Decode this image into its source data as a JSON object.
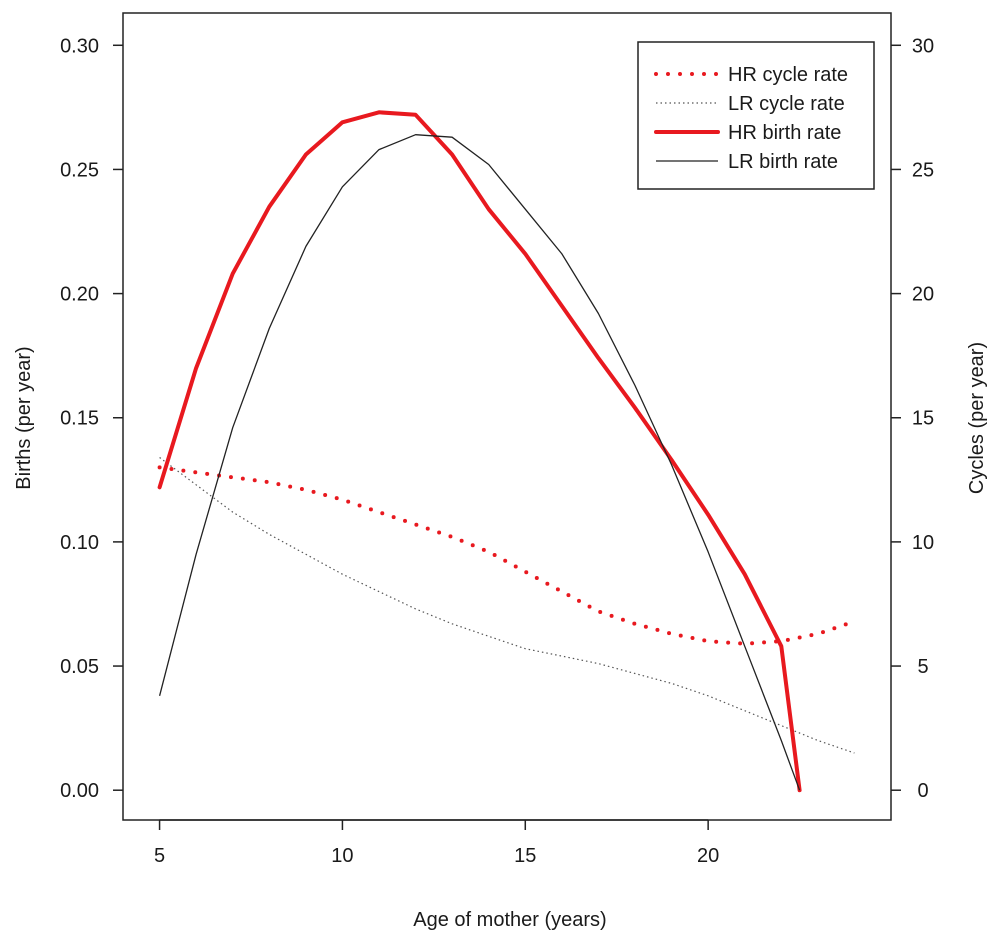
{
  "chart_data": {
    "type": "line",
    "xlabel": "Age of mother (years)",
    "ylabel_left": "Births (per year)",
    "ylabel_right": "Cycles (per year)",
    "xlim": [
      4,
      25
    ],
    "ylim_left": [
      -0.012,
      0.313
    ],
    "ylim_right": [
      -1.2,
      31.3
    ],
    "x_ticks": [
      5,
      10,
      15,
      20
    ],
    "y_left_ticks": [
      0.0,
      0.05,
      0.1,
      0.15,
      0.2,
      0.25,
      0.3
    ],
    "y_left_tick_labels": [
      "0.00",
      "0.05",
      "0.10",
      "0.15",
      "0.20",
      "0.25",
      "0.30"
    ],
    "y_right_ticks": [
      0,
      5,
      10,
      15,
      20,
      25,
      30
    ],
    "y_right_tick_labels": [
      "0",
      "5",
      "10",
      "15",
      "20",
      "25",
      "30"
    ],
    "grid": false,
    "legend_position": "top-right",
    "series": [
      {
        "name": "HR cycle rate",
        "axis": "right",
        "color": "#e8191f",
        "style": "dotted-thick",
        "x": [
          5,
          6,
          7,
          8,
          9,
          10,
          11,
          12,
          13,
          14,
          15,
          16,
          17,
          18,
          19,
          20,
          21,
          22,
          23,
          24
        ],
        "y": [
          13.0,
          12.8,
          12.6,
          12.4,
          12.1,
          11.7,
          11.2,
          10.7,
          10.2,
          9.6,
          8.8,
          8.0,
          7.2,
          6.7,
          6.3,
          6.0,
          5.9,
          6.0,
          6.3,
          6.8
        ]
      },
      {
        "name": "LR cycle rate",
        "axis": "right",
        "color": "#555555",
        "style": "dotted-thin",
        "x": [
          5,
          6,
          7,
          8,
          9,
          10,
          11,
          12,
          13,
          14,
          15,
          16,
          17,
          18,
          19,
          20,
          21,
          22,
          23,
          24
        ],
        "y": [
          13.4,
          12.3,
          11.2,
          10.3,
          9.5,
          8.7,
          8.0,
          7.3,
          6.7,
          6.2,
          5.7,
          5.4,
          5.1,
          4.7,
          4.3,
          3.8,
          3.2,
          2.6,
          2.0,
          1.5
        ]
      },
      {
        "name": "HR birth rate",
        "axis": "left",
        "color": "#e8191f",
        "style": "solid-thick",
        "x": [
          5,
          6,
          7,
          8,
          9,
          10,
          11,
          12,
          13,
          14,
          15,
          16,
          17,
          18,
          19,
          20,
          21,
          22,
          22.5
        ],
        "y": [
          0.122,
          0.17,
          0.208,
          0.235,
          0.256,
          0.269,
          0.273,
          0.272,
          0.256,
          0.234,
          0.216,
          0.195,
          0.174,
          0.154,
          0.133,
          0.111,
          0.087,
          0.058,
          0.0
        ]
      },
      {
        "name": "LR birth rate",
        "axis": "left",
        "color": "#222222",
        "style": "solid-thin",
        "x": [
          5,
          6,
          7,
          8,
          9,
          10,
          11,
          12,
          13,
          14,
          15,
          16,
          17,
          18,
          19,
          20,
          21,
          22,
          22.5
        ],
        "y": [
          0.038,
          0.095,
          0.146,
          0.186,
          0.219,
          0.243,
          0.258,
          0.264,
          0.263,
          0.252,
          0.234,
          0.216,
          0.192,
          0.163,
          0.131,
          0.096,
          0.058,
          0.02,
          0.0
        ]
      }
    ]
  }
}
